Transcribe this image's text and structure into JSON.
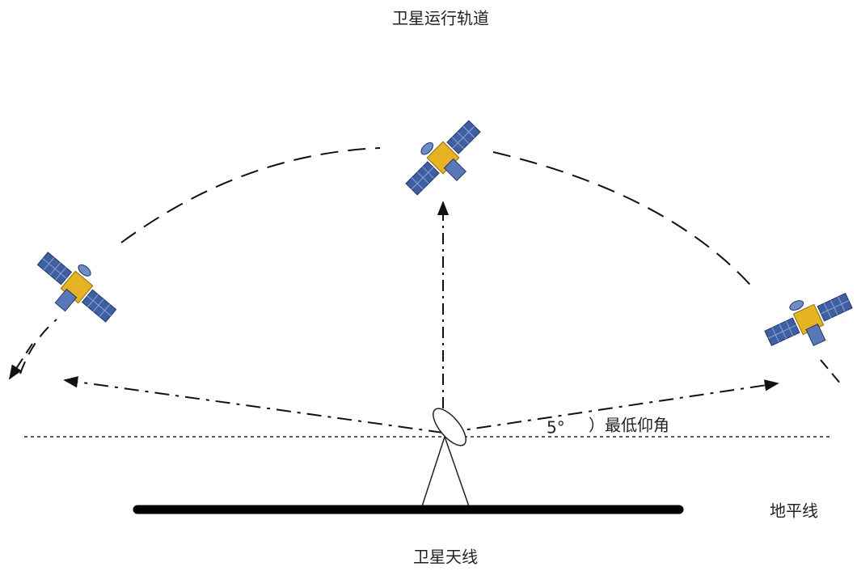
{
  "title": "卫星运行轨道",
  "angle": {
    "value_text": "5°",
    "label": "）最低仰角"
  },
  "horizon_label": "地平线",
  "antenna_label": "卫星天线"
}
